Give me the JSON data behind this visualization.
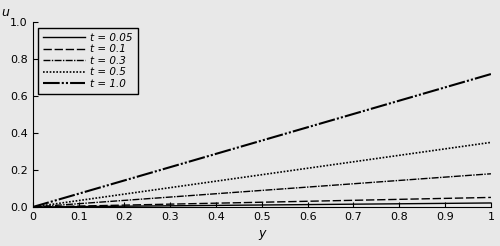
{
  "title": "",
  "xlabel": "y",
  "ylabel": "u",
  "xlim": [
    0,
    1
  ],
  "ylim": [
    0,
    1.0
  ],
  "ytick_values": [
    0.0,
    0.2,
    0.4,
    0.6,
    0.8,
    1.0
  ],
  "xtick_values": [
    0,
    0.1,
    0.2,
    0.3,
    0.4,
    0.5,
    0.6,
    0.7,
    0.8,
    0.9,
    1
  ],
  "t_values": [
    0.05,
    0.1,
    0.3,
    0.5,
    1.0
  ],
  "legend_labels": [
    "t = 0.05",
    "t = 0.1",
    "t = 0.3",
    "t = 0.5",
    "t = 1.0"
  ],
  "legend_loc": "upper left",
  "background_color": "#e8e8e8",
  "num_terms": 80
}
